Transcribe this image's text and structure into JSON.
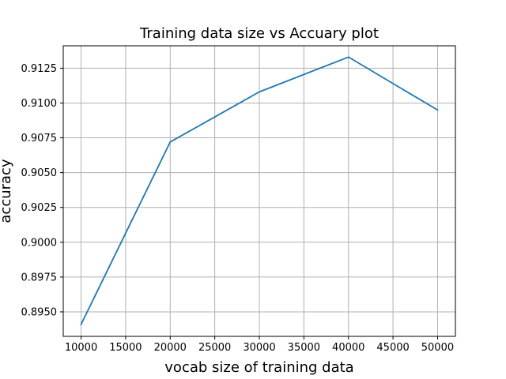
{
  "chart_data": {
    "type": "line",
    "title": "Training data size vs Accuary plot",
    "xlabel": "vocab size of training data",
    "ylabel": "accuracy",
    "x": [
      10000,
      20000,
      30000,
      40000,
      50000
    ],
    "series": [
      {
        "values": [
          0.8941,
          0.9072,
          0.9108,
          0.9133,
          0.9095
        ],
        "color": "#1f77b4"
      }
    ],
    "xlim": [
      8000,
      52000
    ],
    "ylim": [
      0.89324,
      0.91411
    ],
    "x_ticks": [
      10000,
      15000,
      20000,
      25000,
      30000,
      35000,
      40000,
      45000,
      50000
    ],
    "x_tick_labels": [
      "10000",
      "15000",
      "20000",
      "25000",
      "30000",
      "35000",
      "40000",
      "45000",
      "50000"
    ],
    "y_ticks": [
      0.895,
      0.8975,
      0.9,
      0.9025,
      0.905,
      0.9075,
      0.91,
      0.9125
    ],
    "y_tick_labels": [
      "0.8950",
      "0.8975",
      "0.9000",
      "0.9025",
      "0.9050",
      "0.9075",
      "0.9100",
      "0.9125"
    ],
    "grid": true,
    "grid_color": "#b0b0b0",
    "legend": "none"
  }
}
